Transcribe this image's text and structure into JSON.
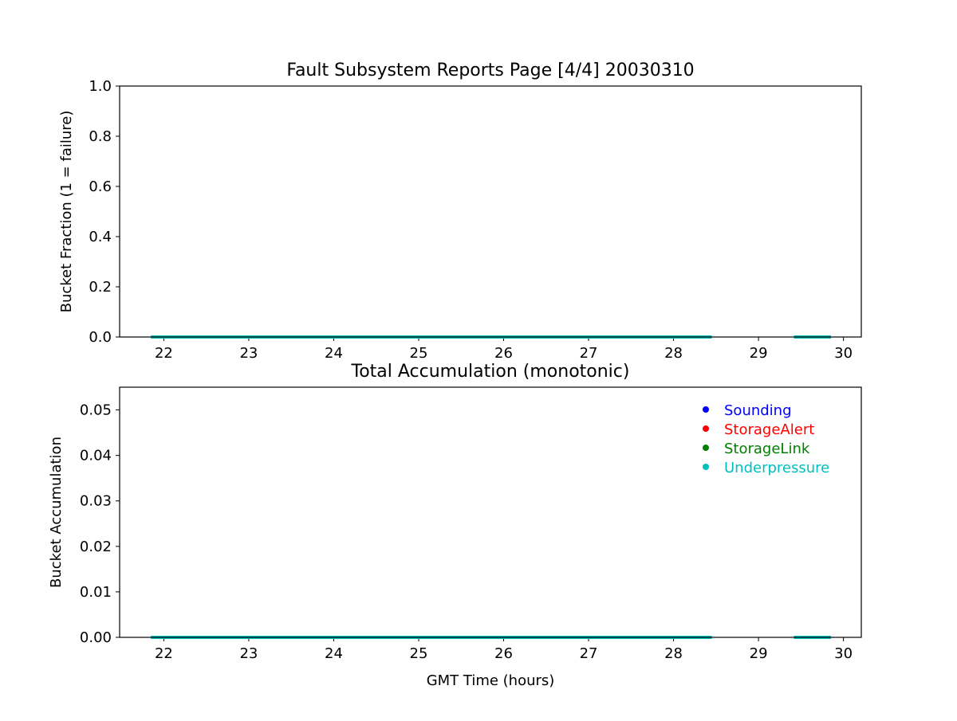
{
  "chart_data": [
    {
      "type": "line",
      "title": "Fault Subsystem Reports Page [4/4] 20030310",
      "xlabel": "",
      "ylabel": "Bucket Fraction (1 = failure)",
      "xlim": [
        21.48,
        30.21
      ],
      "ylim": [
        0,
        1.0
      ],
      "xticks": [
        "22",
        "23",
        "24",
        "25",
        "26",
        "27",
        "28",
        "29",
        "30"
      ],
      "yticks": [
        "0.0",
        "0.2",
        "0.4",
        "0.6",
        "0.8",
        "1.0"
      ],
      "grid": false,
      "series": [
        {
          "color": "#0000ff",
          "segments": [
            [
              [
                21.85,
                0
              ],
              [
                28.45,
                0
              ]
            ],
            [
              [
                29.42,
                0
              ],
              [
                29.85,
                0
              ]
            ]
          ]
        },
        {
          "color": "#ff0000",
          "segments": [
            [
              [
                21.85,
                0
              ],
              [
                28.45,
                0
              ]
            ],
            [
              [
                29.42,
                0
              ],
              [
                29.85,
                0
              ]
            ]
          ]
        },
        {
          "color": "#008000",
          "segments": [
            [
              [
                21.85,
                0
              ],
              [
                28.45,
                0
              ]
            ],
            [
              [
                29.42,
                0
              ],
              [
                29.85,
                0
              ]
            ]
          ]
        },
        {
          "color": "#00bfbf",
          "segments": [
            [
              [
                21.85,
                0
              ],
              [
                28.45,
                0
              ]
            ],
            [
              [
                29.42,
                0
              ],
              [
                29.85,
                0
              ]
            ]
          ]
        }
      ]
    },
    {
      "type": "line",
      "title": "Total Accumulation (monotonic)",
      "xlabel": "GMT Time (hours)",
      "ylabel": "Bucket Accumulation",
      "xlim": [
        21.48,
        30.21
      ],
      "ylim": [
        0,
        0.055
      ],
      "xticks": [
        "22",
        "23",
        "24",
        "25",
        "26",
        "27",
        "28",
        "29",
        "30"
      ],
      "yticks": [
        "0.00",
        "0.01",
        "0.02",
        "0.03",
        "0.04",
        "0.05"
      ],
      "grid": false,
      "legend_position": "top-right",
      "series": [
        {
          "name": "Sounding",
          "color": "#0000ff",
          "segments": [
            [
              [
                21.85,
                0
              ],
              [
                28.45,
                0
              ]
            ],
            [
              [
                29.42,
                0
              ],
              [
                29.85,
                0
              ]
            ]
          ]
        },
        {
          "name": "StorageAlert",
          "color": "#ff0000",
          "segments": [
            [
              [
                21.85,
                0
              ],
              [
                28.45,
                0
              ]
            ],
            [
              [
                29.42,
                0
              ],
              [
                29.85,
                0
              ]
            ]
          ]
        },
        {
          "name": "StorageLink",
          "color": "#008000",
          "segments": [
            [
              [
                21.85,
                0
              ],
              [
                28.45,
                0
              ]
            ],
            [
              [
                29.42,
                0
              ],
              [
                29.85,
                0
              ]
            ]
          ]
        },
        {
          "name": "Underpressure",
          "color": "#00bfbf",
          "segments": [
            [
              [
                21.85,
                0
              ],
              [
                28.45,
                0
              ]
            ],
            [
              [
                29.42,
                0
              ],
              [
                29.85,
                0
              ]
            ]
          ]
        }
      ]
    }
  ]
}
